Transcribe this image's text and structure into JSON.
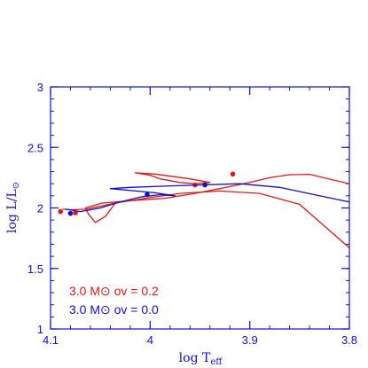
{
  "chart_data": {
    "type": "line",
    "x_axis": {
      "label_main": "log T",
      "label_sub": "eff",
      "range": [
        4.1,
        3.8
      ],
      "reversed": true,
      "major_ticks": [
        4.1,
        4.0,
        3.9,
        3.8
      ],
      "tick_labels": [
        "4.1",
        "4",
        "3.9",
        "3.8"
      ],
      "minor_step": 0.02
    },
    "y_axis": {
      "label_main": "log L/L",
      "label_symbol": "⊙",
      "range": [
        1,
        3
      ],
      "major_ticks": [
        1,
        1.5,
        2,
        2.5,
        3
      ],
      "tick_labels": [
        "1",
        "1.5",
        "2",
        "2.5",
        "3"
      ],
      "minor_step": 0.1
    },
    "axis_color": "#1010d0",
    "series": [
      {
        "name": "3.0 M⊙  ov = 0.2",
        "color": "#e01818",
        "points": [
          [
            4.088,
            1.99
          ],
          [
            4.078,
            1.985
          ],
          [
            4.064,
            1.99
          ],
          [
            4.035,
            2.04
          ],
          [
            4.005,
            2.08
          ],
          [
            3.97,
            2.12
          ],
          [
            3.93,
            2.14
          ],
          [
            3.89,
            2.12
          ],
          [
            3.85,
            2.03
          ],
          [
            3.8,
            1.67
          ]
        ],
        "branch2": [
          [
            4.035,
            2.04
          ],
          [
            4.045,
            1.93
          ],
          [
            4.055,
            1.88
          ],
          [
            4.062,
            1.95
          ],
          [
            4.065,
            2.0
          ],
          [
            4.048,
            2.04
          ],
          [
            4.02,
            2.06
          ],
          [
            3.985,
            2.08
          ],
          [
            3.955,
            2.12
          ],
          [
            3.93,
            2.16
          ],
          [
            3.9,
            2.21
          ],
          [
            3.88,
            2.25
          ],
          [
            3.86,
            2.275
          ],
          [
            3.84,
            2.278
          ],
          [
            3.8,
            2.2
          ]
        ],
        "loop": [
          [
            3.955,
            2.2
          ],
          [
            3.97,
            2.21
          ],
          [
            3.99,
            2.24
          ],
          [
            4.0,
            2.27
          ],
          [
            4.015,
            2.29
          ],
          [
            3.995,
            2.28
          ],
          [
            3.96,
            2.24
          ],
          [
            3.94,
            2.21
          ],
          [
            3.955,
            2.2
          ]
        ],
        "dots": [
          [
            4.09,
            1.97
          ],
          [
            4.075,
            1.96
          ],
          [
            3.955,
            2.19
          ],
          [
            3.917,
            2.28
          ]
        ]
      },
      {
        "name": "3.0 M⊙  ov = 0.0",
        "color": "#1010d0",
        "points": [
          [
            4.085,
            1.99
          ],
          [
            4.07,
            1.97
          ],
          [
            4.05,
            2.0
          ],
          [
            4.03,
            2.05
          ],
          [
            4.01,
            2.09
          ],
          [
            3.99,
            2.11
          ],
          [
            3.975,
            2.1
          ],
          [
            3.995,
            2.125
          ],
          [
            4.04,
            2.16
          ],
          [
            4.02,
            2.17
          ],
          [
            3.985,
            2.18
          ],
          [
            3.95,
            2.19
          ],
          [
            3.91,
            2.2
          ],
          [
            3.87,
            2.17
          ],
          [
            3.83,
            2.1
          ],
          [
            3.8,
            2.05
          ]
        ],
        "dots": [
          [
            4.08,
            1.955
          ],
          [
            4.003,
            2.11
          ],
          [
            3.945,
            2.19
          ]
        ]
      }
    ]
  },
  "legend": {
    "entries": [
      {
        "label": "3.0 M⊙  ov = 0.2",
        "color": "#e01818"
      },
      {
        "label": "3.0 M⊙  ov = 0.0",
        "color": "#1010d0"
      }
    ]
  }
}
